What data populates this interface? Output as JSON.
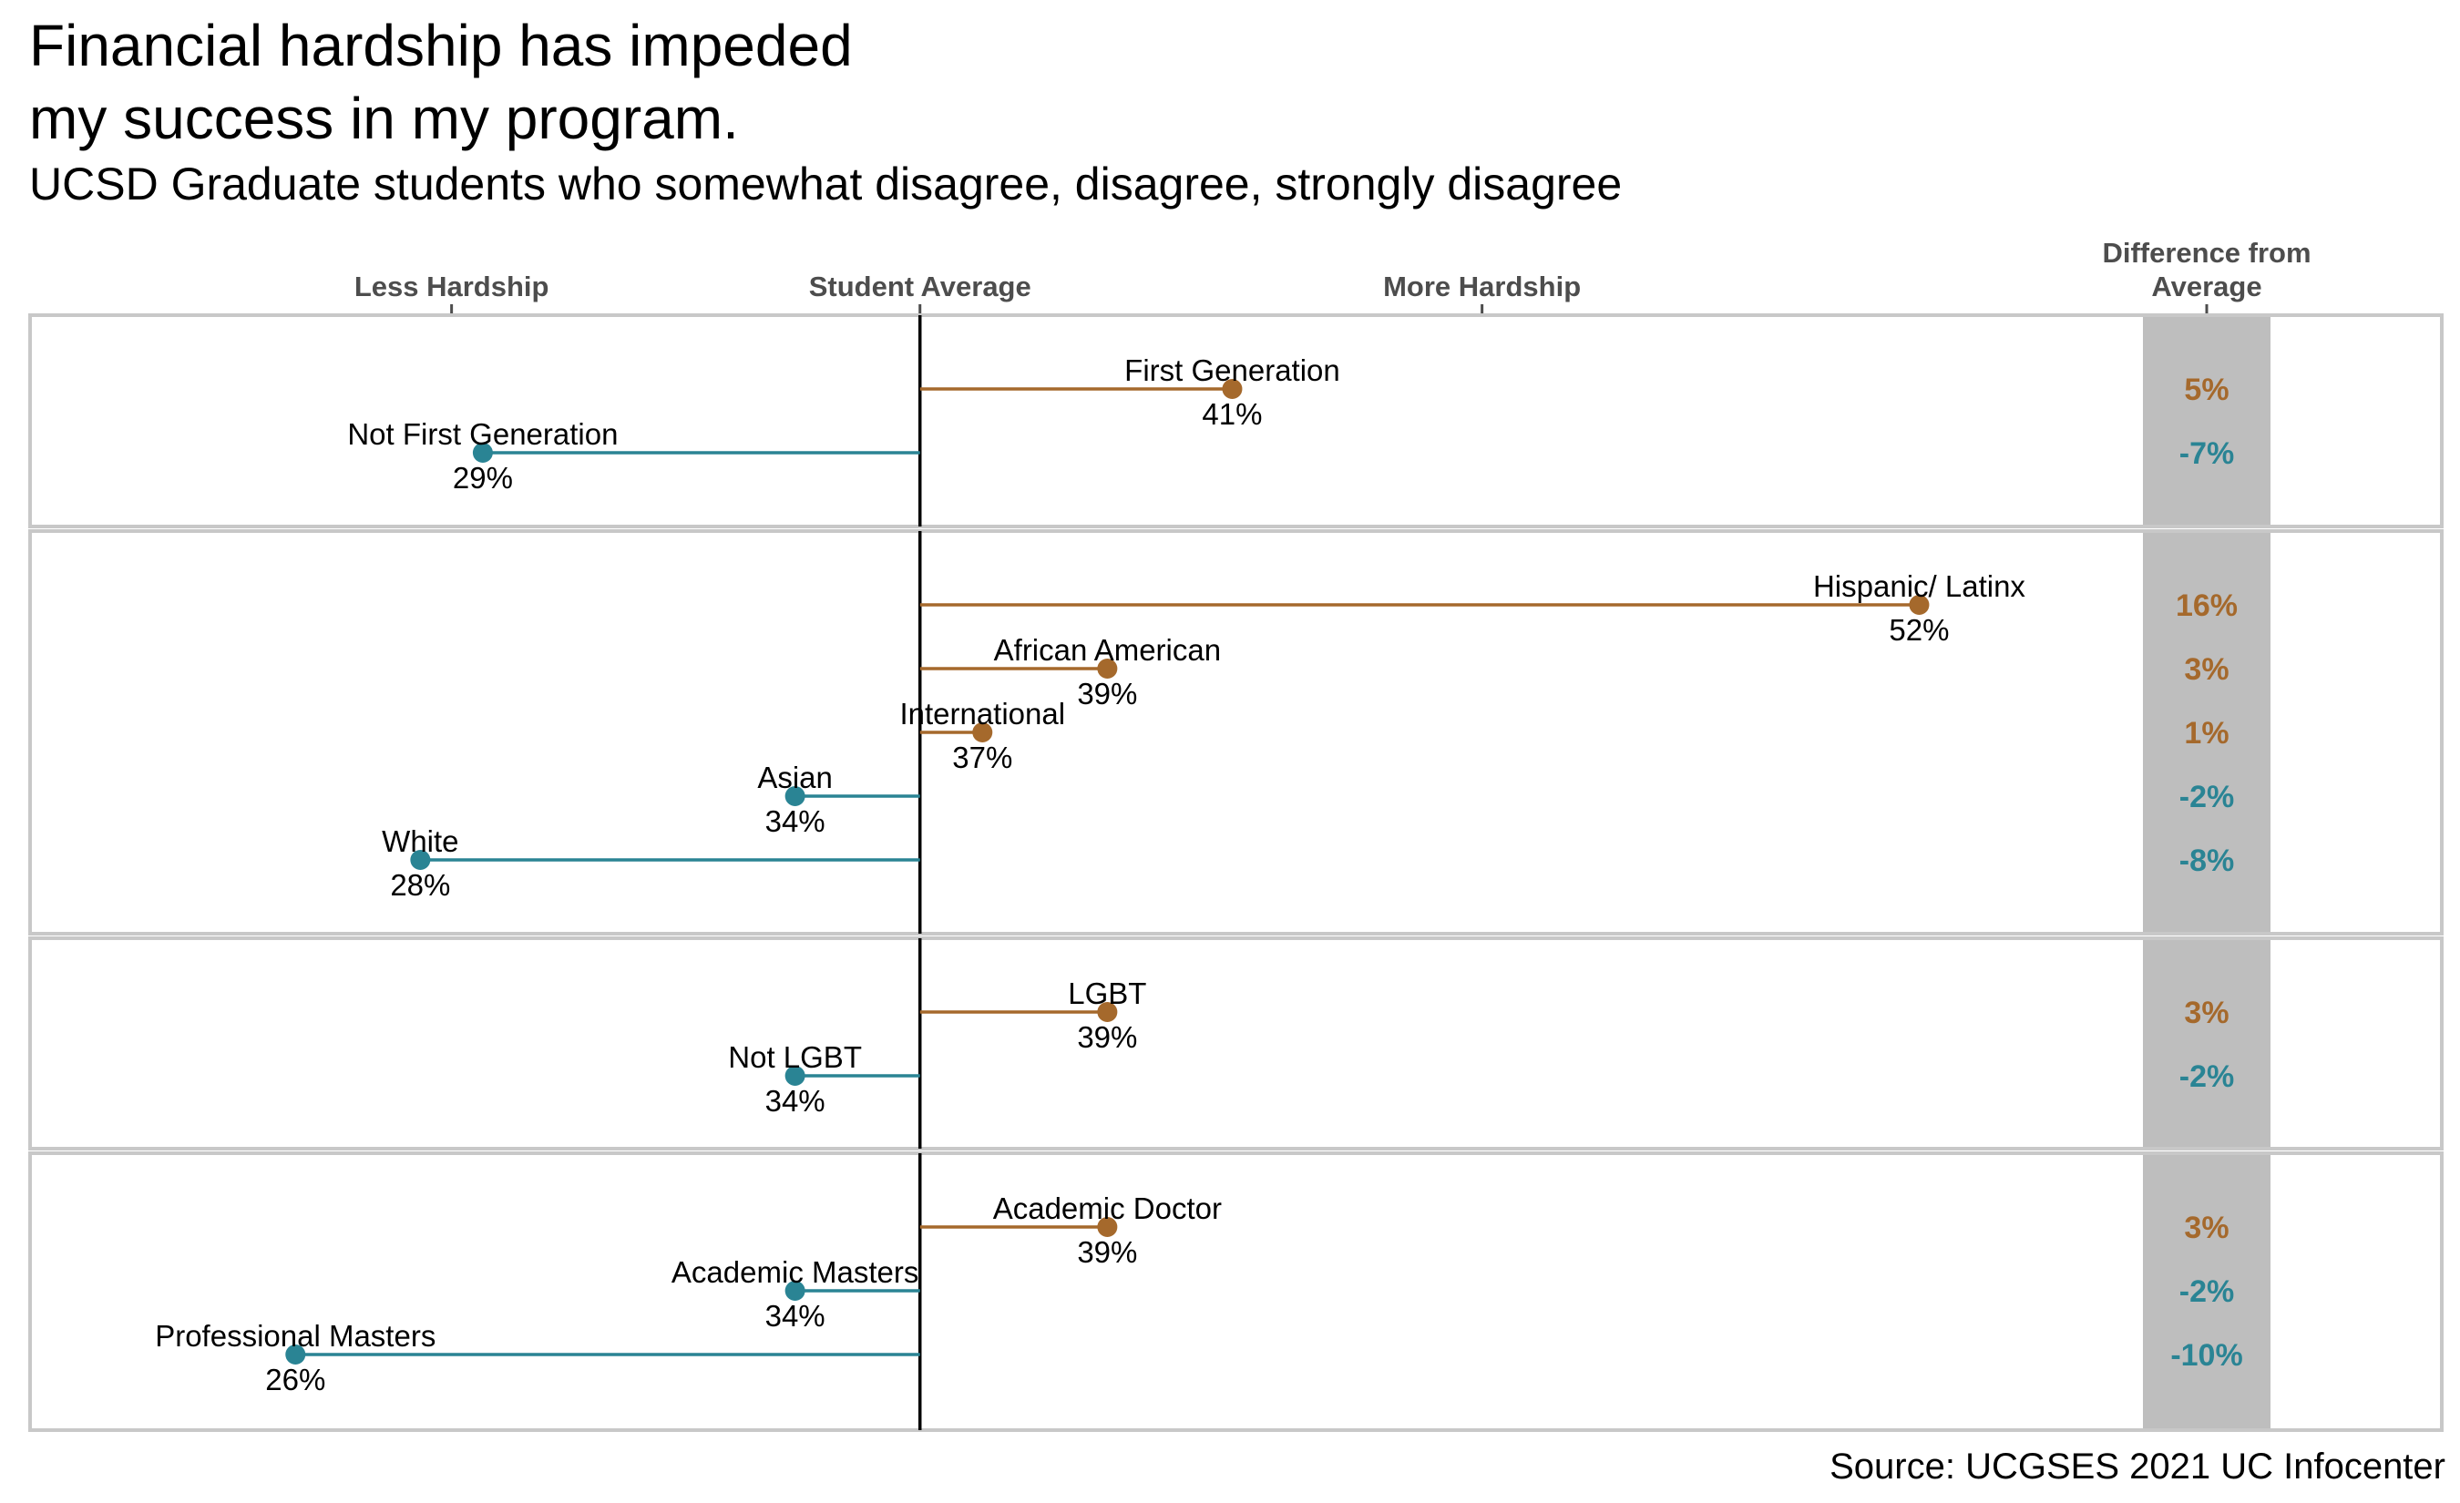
{
  "title": "Financial hardship has impeded\nmy success in my program.",
  "subtitle": "UCSD Graduate students who somewhat disagree, disagree, strongly disagree",
  "source": "Source: UCGSES 2021 UC Infocenter",
  "colors": {
    "above": "#a5692c",
    "below": "#2a8494",
    "panel_border": "#c8c8c8",
    "diff_band": "#bebebe",
    "average_line": "#000000"
  },
  "chart_data": {
    "type": "lollipop",
    "average": 36,
    "xlim": [
      25.5,
      53
    ],
    "axis_top": {
      "less_label": "Less Hardship",
      "average_label": "Student Average",
      "more_label": "More Hardship",
      "diff_label": "Difference from\nAverage"
    },
    "groups": [
      {
        "items": [
          {
            "label": "First Generation",
            "value_label": "41%",
            "value": 41,
            "diff_label": "5%"
          },
          {
            "label": "Not First Generation",
            "value_label": "29%",
            "value": 29,
            "diff_label": "-7%"
          }
        ]
      },
      {
        "items": [
          {
            "label": "Hispanic/ Latinx",
            "value_label": "52%",
            "value": 52,
            "diff_label": "16%"
          },
          {
            "label": "African American",
            "value_label": "39%",
            "value": 39,
            "diff_label": "3%"
          },
          {
            "label": "International",
            "value_label": "37%",
            "value": 37,
            "diff_label": "1%"
          },
          {
            "label": "Asian",
            "value_label": "34%",
            "value": 34,
            "diff_label": "-2%"
          },
          {
            "label": "White",
            "value_label": "28%",
            "value": 28,
            "diff_label": "-8%"
          }
        ]
      },
      {
        "items": [
          {
            "label": "LGBT",
            "value_label": "39%",
            "value": 39,
            "diff_label": "3%"
          },
          {
            "label": "Not LGBT",
            "value_label": "34%",
            "value": 34,
            "diff_label": "-2%"
          }
        ]
      },
      {
        "items": [
          {
            "label": "Academic Doctor",
            "value_label": "39%",
            "value": 39,
            "diff_label": "3%"
          },
          {
            "label": "Academic Masters",
            "value_label": "34%",
            "value": 34,
            "diff_label": "-2%"
          },
          {
            "label": "Professional Masters",
            "value_label": "26%",
            "value": 26,
            "diff_label": "-10%"
          }
        ]
      }
    ]
  }
}
